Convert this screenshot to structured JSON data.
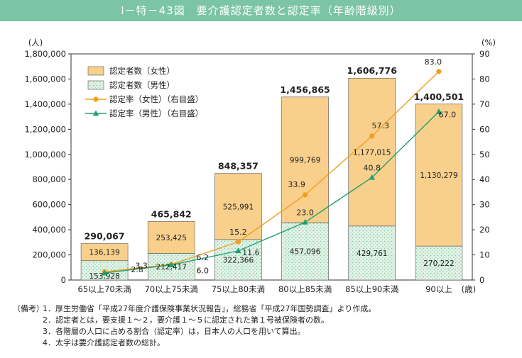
{
  "title": "Ⅰ－特－43図　要介護認定者数と認定率（年齢階級別）",
  "chart_data": {
    "type": "bar",
    "stacked": true,
    "categories": [
      "65以上70未満",
      "70以上75未満",
      "75以上80未満",
      "80以上85未満",
      "85以上90未満",
      "90以上"
    ],
    "x_unit_label": "(歳)",
    "left_axis": {
      "unit_label": "(人)",
      "range": [
        0,
        1800000
      ],
      "ticks": [
        "0",
        "200,000",
        "400,000",
        "600,000",
        "800,000",
        "1,000,000",
        "1,200,000",
        "1,400,000",
        "1,600,000",
        "1,800,000"
      ],
      "tick_values": [
        0,
        200000,
        400000,
        600000,
        800000,
        1000000,
        1200000,
        1400000,
        1600000,
        1800000
      ]
    },
    "right_axis": {
      "unit_label": "(%)",
      "range": [
        0,
        90
      ],
      "ticks": [
        "0",
        "10",
        "20",
        "30",
        "40",
        "50",
        "60",
        "70",
        "80",
        "90"
      ],
      "tick_values": [
        0,
        10,
        20,
        30,
        40,
        50,
        60,
        70,
        80,
        90
      ]
    },
    "series": [
      {
        "name": "認定者数（男性）",
        "kind": "bar",
        "color": "#cfe9d6",
        "pattern": "dots",
        "values": [
          153928,
          212417,
          322366,
          457096,
          429761,
          270222
        ],
        "labels": [
          "153,928",
          "212,417",
          "322,366",
          "457,096",
          "429,761",
          "270,222"
        ]
      },
      {
        "name": "認定者数（女性）",
        "kind": "bar",
        "color": "#f9cf8c",
        "values": [
          136139,
          253425,
          525991,
          999769,
          1177015,
          1130279
        ],
        "labels": [
          "136,139",
          "253,425",
          "525,991",
          "999,769",
          "1,177,015",
          "1,130,279"
        ]
      },
      {
        "name": "認定率（女性）（右目盛）",
        "kind": "line",
        "color": "#f0a020",
        "marker": "circle",
        "values": [
          3.3,
          6.2,
          15.2,
          33.9,
          57.3,
          83.0
        ],
        "labels": [
          "3.3",
          "6.2",
          "15.2",
          "33.9",
          "57.3",
          "83.0"
        ]
      },
      {
        "name": "認定率（男性）（右目盛）",
        "kind": "line",
        "color": "#20a070",
        "marker": "triangle",
        "values": [
          2.8,
          6.0,
          11.6,
          23.0,
          40.8,
          67.0
        ],
        "labels": [
          "2.8",
          "6.0",
          "11.6",
          "23.0",
          "40.8",
          "67.0"
        ]
      }
    ],
    "totals": [
      290067,
      465842,
      848357,
      1456865,
      1606776,
      1400501
    ],
    "total_labels": [
      "290,067",
      "465,842",
      "848,357",
      "1,456,865",
      "1,606,776",
      "1,400,501"
    ],
    "legend_position": "top-left",
    "grid": false
  },
  "notes": {
    "header": "（備考）",
    "items": [
      {
        "num": "1．",
        "text": "厚生労働省「平成27年度介護保険事業状況報告」，総務省「平成27年国勢調査」より作成。"
      },
      {
        "num": "2．",
        "text": "認定者とは，要支援１～２，要介護１～５に認定された第１号被保険者の数。"
      },
      {
        "num": "3．",
        "text": "各階層の人口に占める割合（認定率）は，日本人の人口を用いて算出。"
      },
      {
        "num": "4．",
        "text": "太字は要介護認定者数の総計。"
      }
    ]
  }
}
